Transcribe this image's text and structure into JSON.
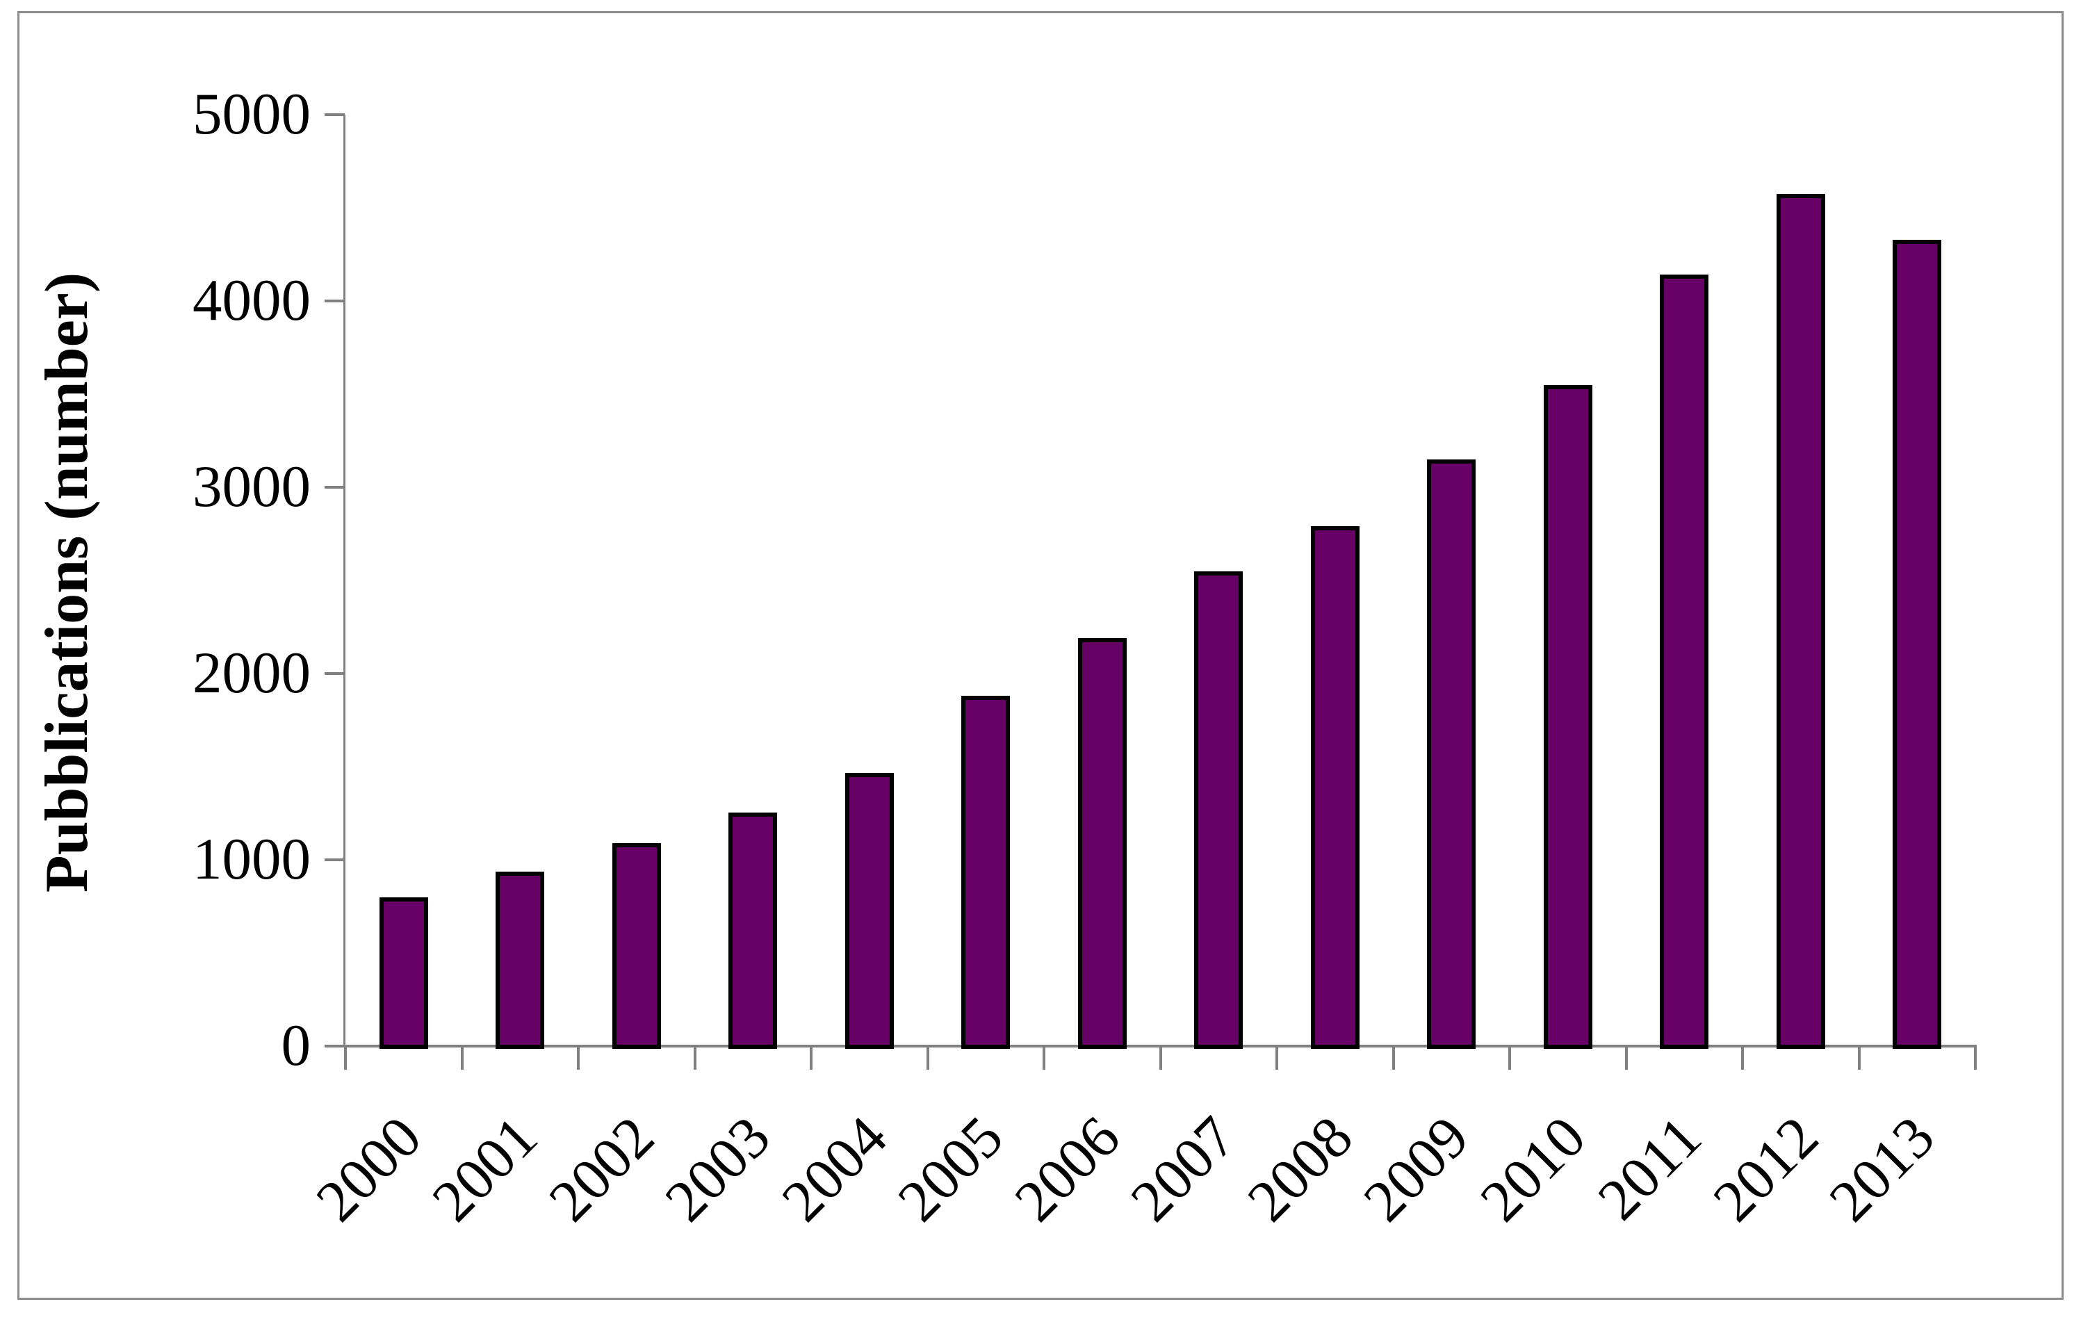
{
  "chart_data": {
    "type": "bar",
    "title": "",
    "xlabel": "",
    "ylabel": "Pubblications (number)",
    "categories": [
      "2000",
      "2001",
      "2002",
      "2003",
      "2004",
      "2005",
      "2006",
      "2007",
      "2008",
      "2009",
      "2010",
      "2011",
      "2012",
      "2013"
    ],
    "values": [
      800,
      935,
      1090,
      1255,
      1465,
      1880,
      2190,
      2550,
      2790,
      3150,
      3550,
      4140,
      4575,
      4330
    ],
    "ylim": [
      0,
      5000
    ],
    "ytick_interval": 1000,
    "ytick_labels": [
      "0",
      "1000",
      "2000",
      "3000",
      "4000",
      "5000"
    ],
    "grid": "off",
    "legend": "none",
    "bar_fill_color": "#660066",
    "bar_border_color": "#000000",
    "axis_color": "#808080",
    "frame_color": "#8C8C8C",
    "text_color": "#000000"
  }
}
